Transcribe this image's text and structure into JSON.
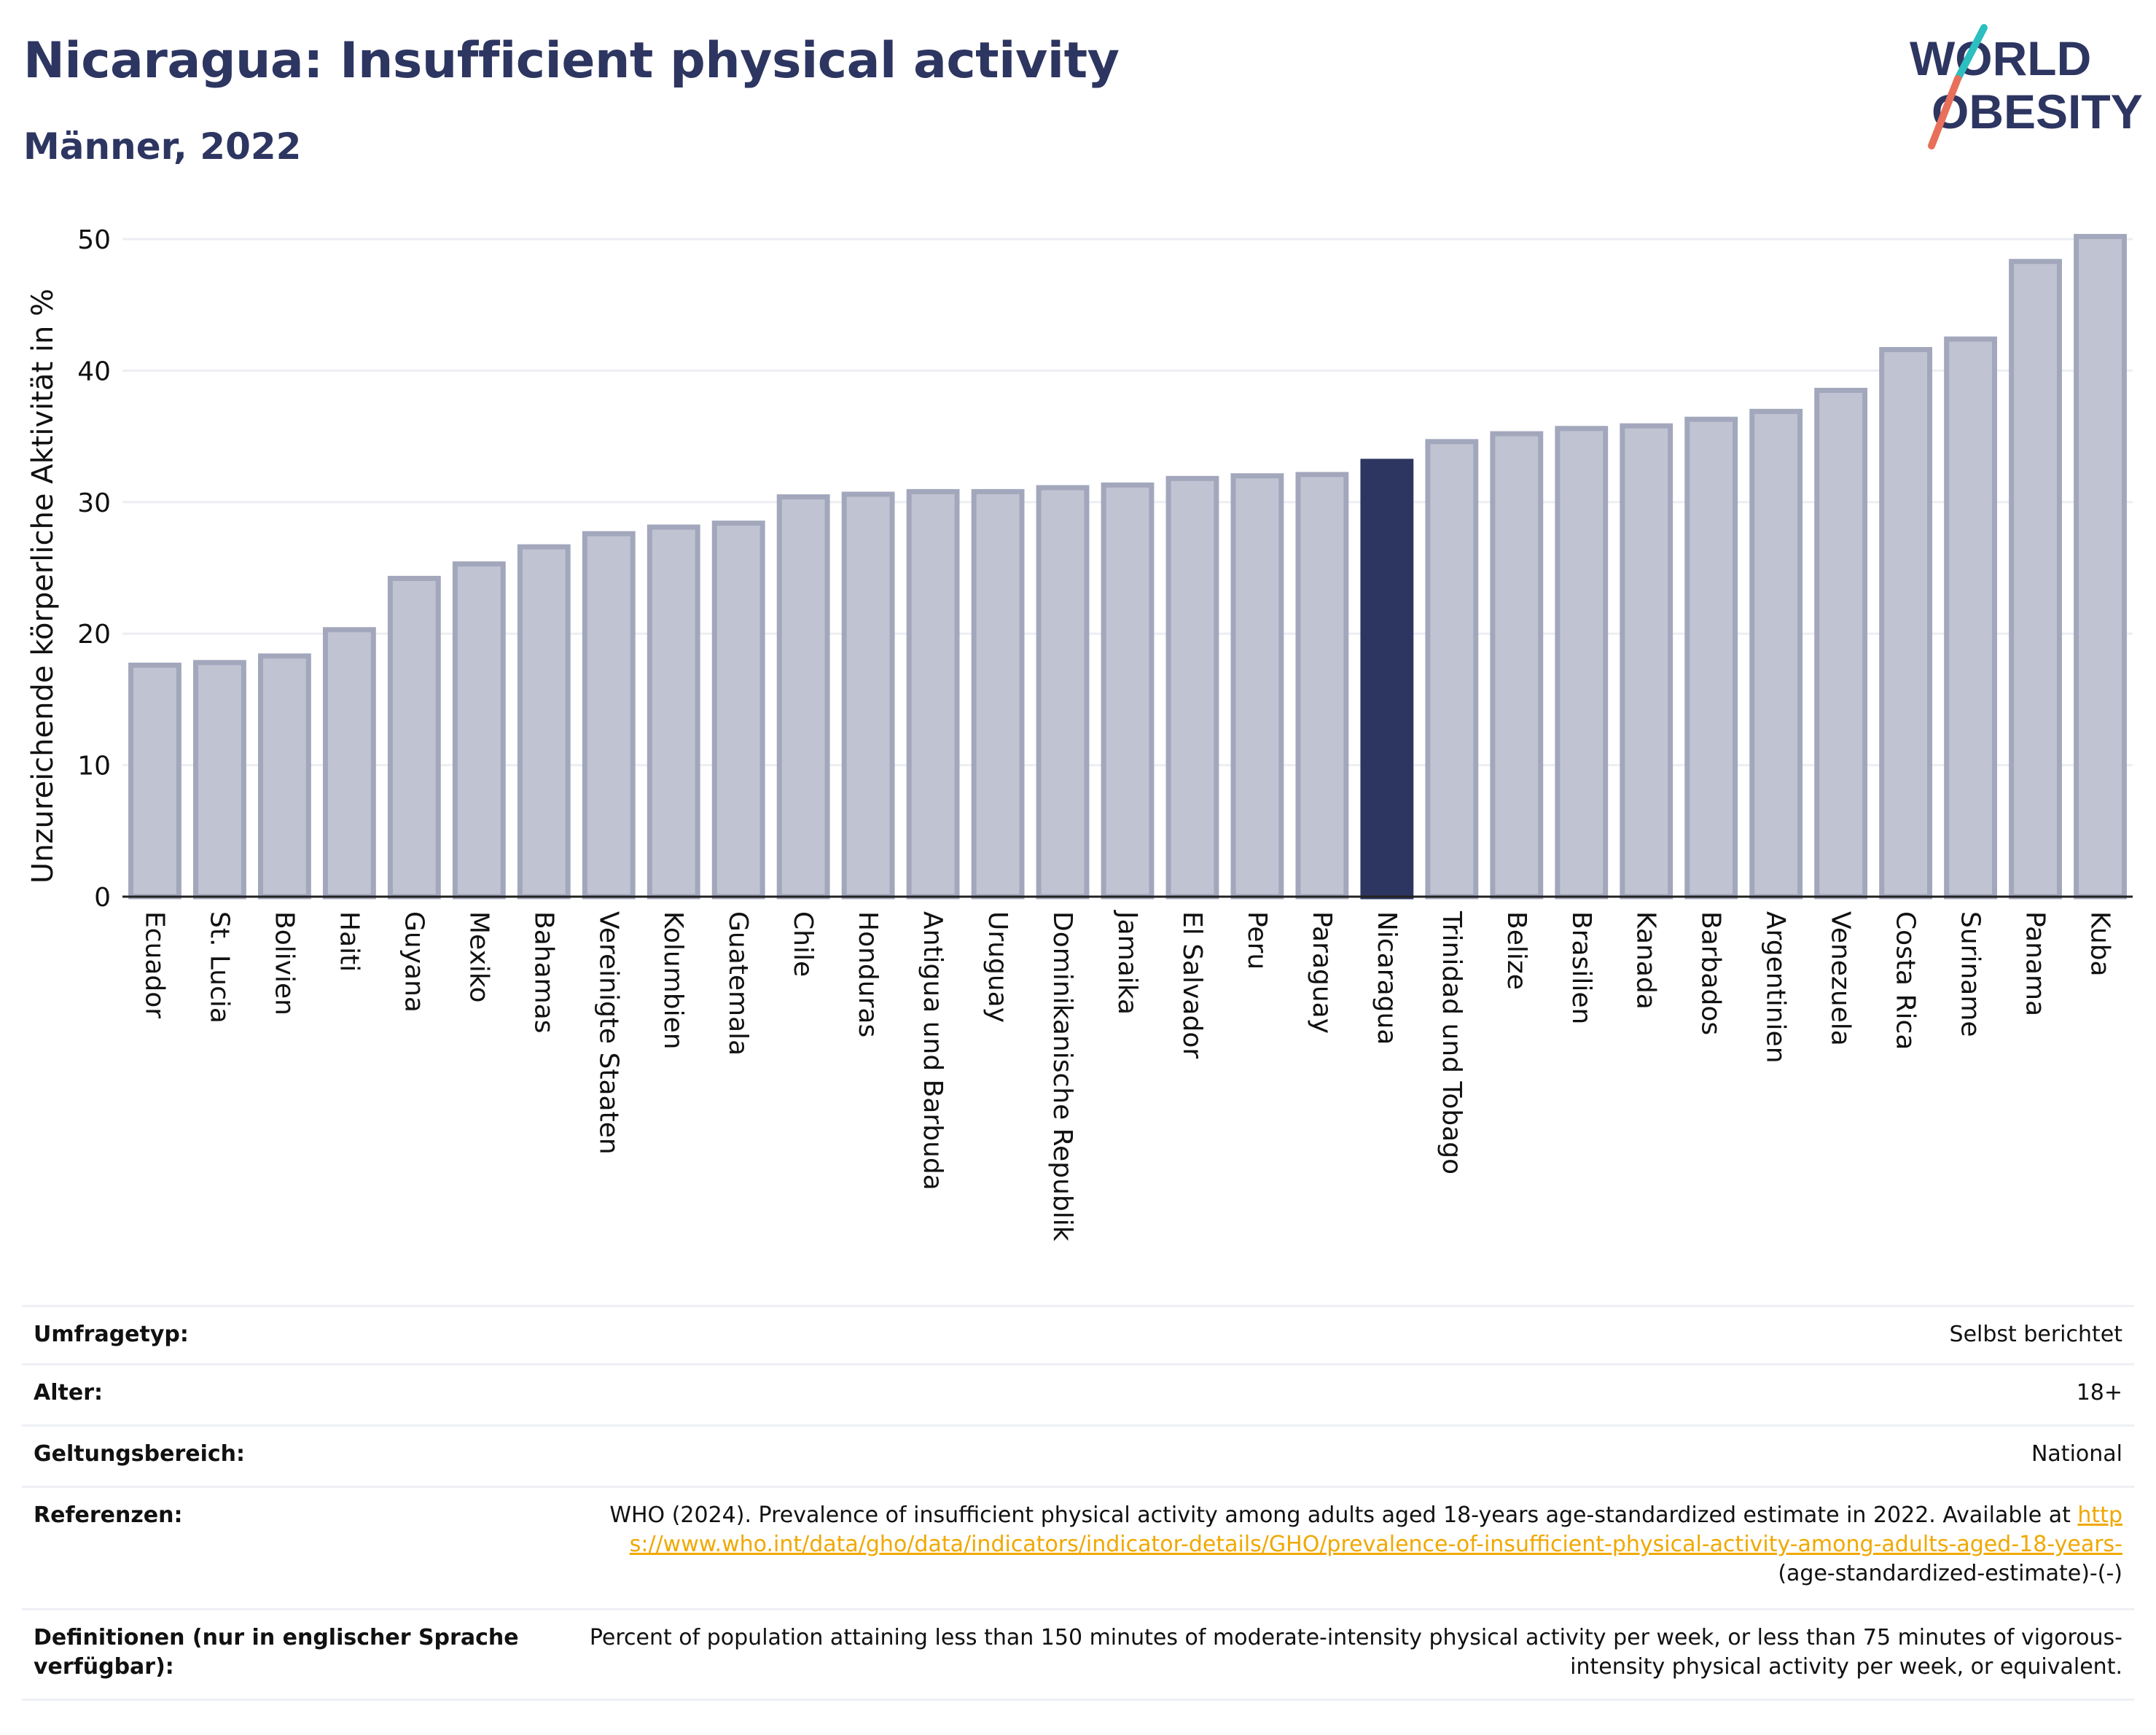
{
  "title": "Nicaragua: Insufficient physical activity",
  "subtitle": "Männer, 2022",
  "logo": {
    "line1": "WORLD",
    "line2": "OBESITY",
    "accent_colors": [
      "#2bbfbf",
      "#e8705a"
    ]
  },
  "colors": {
    "highlight": "#2d3561",
    "bar": "#c0c3d1",
    "bar_border": "#a2a7bc",
    "axis_text": "#111111",
    "grid": "#eceef3"
  },
  "chart_data": {
    "type": "bar",
    "title": "Nicaragua: Insufficient physical activity",
    "subtitle": "Männer, 2022",
    "ylabel": "Unzureichende körperliche Aktivität in %",
    "xlabel": "",
    "ylim": [
      0,
      50
    ],
    "yticks": [
      0,
      10,
      20,
      30,
      40,
      50
    ],
    "grid": true,
    "highlight": "Nicaragua",
    "categories": [
      "Ecuador",
      "St. Lucia",
      "Bolivien",
      "Haiti",
      "Guyana",
      "Mexiko",
      "Bahamas",
      "Vereinigte Staaten",
      "Kolumbien",
      "Guatemala",
      "Chile",
      "Honduras",
      "Antigua und Barbuda",
      "Uruguay",
      "Dominikanische Republik",
      "Jamaika",
      "El Salvador",
      "Peru",
      "Paraguay",
      "Nicaragua",
      "Trinidad und Tobago",
      "Belize",
      "Brasilien",
      "Kanada",
      "Barbados",
      "Argentinien",
      "Venezuela",
      "Costa Rica",
      "Suriname",
      "Panama",
      "Kuba"
    ],
    "values": [
      17.6,
      17.8,
      18.3,
      20.3,
      24.2,
      25.3,
      26.6,
      27.6,
      28.1,
      28.4,
      30.4,
      30.6,
      30.8,
      30.8,
      31.1,
      31.3,
      31.8,
      32.0,
      32.1,
      33.1,
      34.6,
      35.2,
      35.6,
      35.8,
      36.3,
      36.9,
      38.5,
      41.6,
      42.4,
      48.3,
      50.2
    ]
  },
  "info_table": [
    {
      "key": "Umfragetyp:",
      "value": "Selbst berichtet"
    },
    {
      "key": "Alter:",
      "value": "18+"
    },
    {
      "key": "Geltungsbereich:",
      "value": "National"
    },
    {
      "key": "Referenzen:",
      "value": "WHO (2024). Prevalence of insufficient physical activity among adults aged 18-years age-standardized estimate in 2022. Available at",
      "link": "https://www.who.int/data/gho/data/indicators/indicator-details/GHO/prevalence-of-insufficient-physical-activity-among-adults-aged-18-years-",
      "suffix": "(age-standardized-estimate)-(-)"
    },
    {
      "key": "Definitionen (nur in englischer Sprache verfügbar):",
      "value": "Percent of population attaining less than 150 minutes of moderate-intensity physical activity per week, or less than 75 minutes of vigorous-intensity physical activity per week, or equivalent."
    }
  ]
}
